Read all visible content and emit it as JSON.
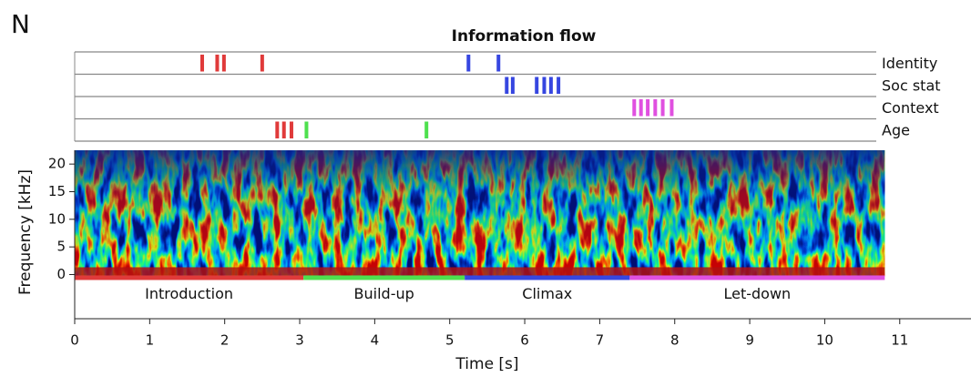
{
  "panel_label": "N",
  "chart_data": {
    "type": "event-raster-spectrogram",
    "title": "Information flow",
    "xlabel": "Time [s]",
    "ylabel": "Frequency [kHz]",
    "xlim": [
      0,
      11.95
    ],
    "xticks": [
      0,
      1,
      2,
      3,
      4,
      5,
      6,
      7,
      8,
      9,
      10,
      11
    ],
    "ylim": [
      -8,
      22.5
    ],
    "yticks": [
      0,
      5,
      10,
      15,
      20
    ],
    "spectrogram_extent": [
      0,
      10.8
    ],
    "rows": [
      {
        "name": "Identity",
        "series": [
          {
            "color": "#e03a3a",
            "values": [
              1.7,
              1.9,
              1.99,
              2.5
            ]
          },
          {
            "color": "#3646e0",
            "values": [
              5.25,
              5.65
            ]
          }
        ]
      },
      {
        "name": "Soc stat",
        "series": [
          {
            "color": "#3646e0",
            "values": [
              5.76,
              5.84,
              6.16,
              6.26,
              6.35,
              6.45
            ]
          }
        ]
      },
      {
        "name": "Context",
        "series": [
          {
            "color": "#e050e0",
            "values": [
              7.46,
              7.55,
              7.64,
              7.74,
              7.84,
              7.96
            ]
          }
        ]
      },
      {
        "name": "Age",
        "series": [
          {
            "color": "#e03a3a",
            "values": [
              2.7,
              2.79,
              2.89
            ]
          },
          {
            "color": "#4ee04e",
            "values": [
              3.09,
              4.69
            ]
          }
        ]
      }
    ],
    "phases": [
      {
        "name": "Introduction",
        "start": 0,
        "end": 3.05,
        "color": "#e03a3a"
      },
      {
        "name": "Build-up",
        "start": 3.05,
        "end": 5.2,
        "color": "#4ee04e"
      },
      {
        "name": "Climax",
        "start": 5.2,
        "end": 7.4,
        "color": "#3646e0"
      },
      {
        "name": "Let-down",
        "start": 7.4,
        "end": 10.8,
        "color": "#e050e0"
      }
    ]
  }
}
